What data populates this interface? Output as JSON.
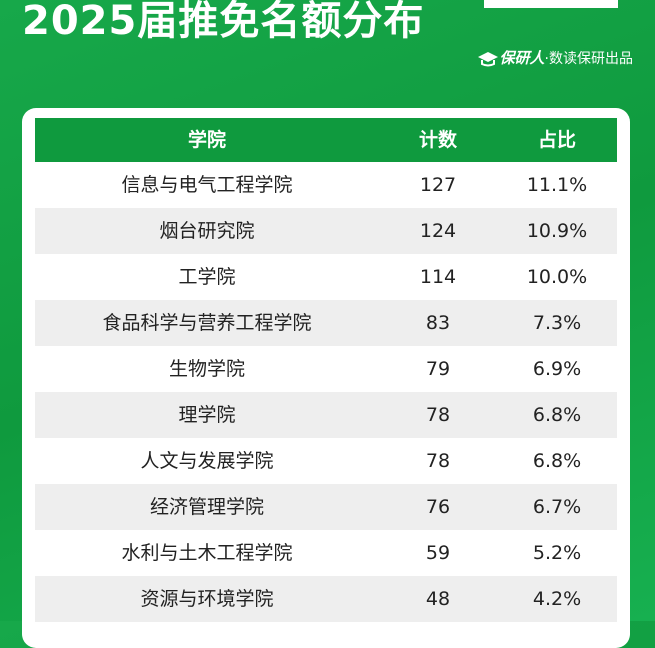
{
  "header": {
    "title": "2025届推免名额分布",
    "brand": "保研人",
    "byline": "·数读保研出品"
  },
  "table": {
    "columns": [
      "学院",
      "计数",
      "占比"
    ],
    "rows": [
      [
        "信息与电气工程学院",
        127,
        "11.1%"
      ],
      [
        "烟台研究院",
        124,
        "10.9%"
      ],
      [
        "工学院",
        114,
        "10.0%"
      ],
      [
        "食品科学与营养工程学院",
        83,
        "7.3%"
      ],
      [
        "生物学院",
        79,
        "6.9%"
      ],
      [
        "理学院",
        78,
        "6.8%"
      ],
      [
        "人文与发展学院",
        78,
        "6.8%"
      ],
      [
        "经济管理学院",
        76,
        "6.7%"
      ],
      [
        "水利与土木工程学院",
        59,
        "5.2%"
      ],
      [
        "资源与环境学院",
        48,
        "4.2%"
      ]
    ]
  }
}
